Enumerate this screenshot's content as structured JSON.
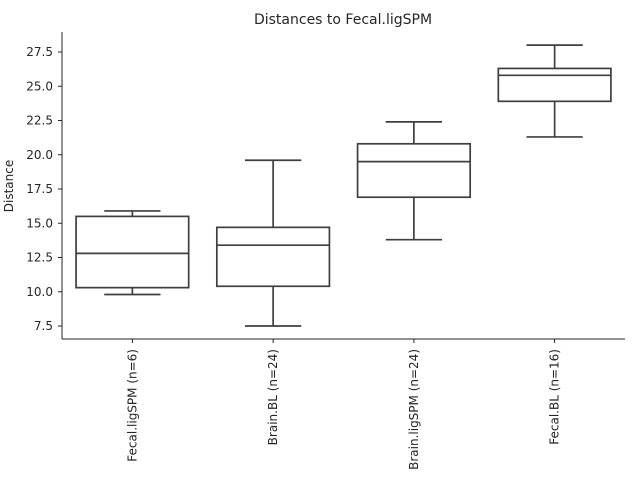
{
  "chart_data": {
    "type": "box",
    "title": "Distances to Fecal.ligSPM",
    "ylabel": "Distance",
    "xlabel": "",
    "ylim": [
      6.5,
      29.0
    ],
    "yticks": [
      "7.5",
      "10.0",
      "12.5",
      "15.0",
      "17.5",
      "20.0",
      "22.5",
      "25.0",
      "27.5"
    ],
    "grid": false,
    "categories": [
      "Fecal.ligSPM (n=6)",
      "Brain.BL (n=24)",
      "Brain.ligSPM (n=24)",
      "Fecal.BL (n=16)"
    ],
    "boxes": [
      {
        "whisker_low": 9.8,
        "q1": 10.3,
        "median": 12.8,
        "q3": 15.5,
        "whisker_high": 15.9
      },
      {
        "whisker_low": 7.5,
        "q1": 10.4,
        "median": 13.4,
        "q3": 14.7,
        "whisker_high": 19.6
      },
      {
        "whisker_low": 13.8,
        "q1": 16.9,
        "median": 19.5,
        "q3": 20.8,
        "whisker_high": 22.4
      },
      {
        "whisker_low": 21.3,
        "q1": 23.9,
        "median": 25.8,
        "q3": 26.3,
        "whisker_high": 28.0
      }
    ]
  }
}
